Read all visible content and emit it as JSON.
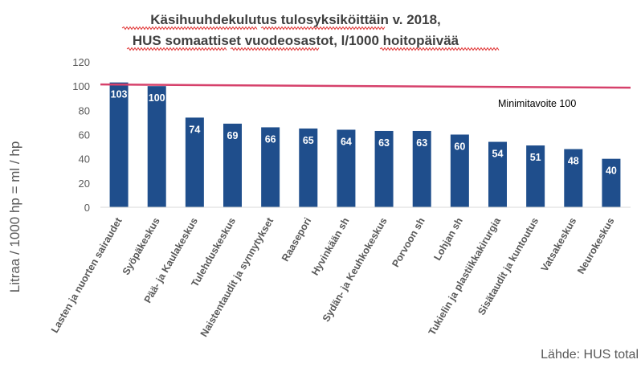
{
  "chart_data": {
    "type": "bar",
    "title": "Käsihuuhdekulutus tulosyksiköittäin v. 2018,",
    "subtitle": "HUS somaattiset vuodeosastot, l/1000 hoitopäivää",
    "ylabel": "Litraa / 1000 hp = ml / hp",
    "xlabel": "",
    "ylim": [
      0,
      120
    ],
    "yticks": [
      0,
      20,
      40,
      60,
      80,
      100,
      120
    ],
    "grid": false,
    "categories": [
      "Lasten ja nuorten sairaudet",
      "Syöpäkeskus",
      "Pää- ja Kaulakeskus",
      "Tulehduskeskus",
      "Naistentaudit ja synnytykset",
      "Raasepori",
      "Hyvinkään sh",
      "Sydän- ja Keuhkokeskus",
      "Porvoon sh",
      "Lohjan sh",
      "Tukielin ja plastiikkakirurgia",
      "Sisätaudit ja kuntoutus",
      "Vatsakeskus",
      "Neurokeskus"
    ],
    "values": [
      103,
      100,
      74,
      69,
      66,
      65,
      64,
      63,
      63,
      60,
      54,
      51,
      48,
      40
    ],
    "bar_color": "#1f4e8c",
    "target": {
      "label": "Minimitavoite 100",
      "value": 100,
      "color": "#d6416b"
    },
    "source": "Lähde: HUS total"
  }
}
